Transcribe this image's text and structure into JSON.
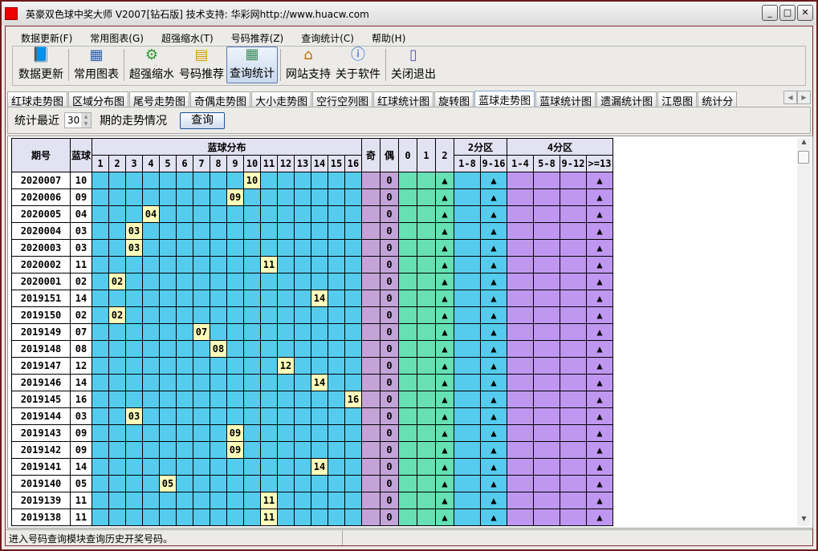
{
  "window": {
    "title": "英豪双色球中奖大师   V2007[钻石版]  技术支持: 华彩网http://www.huacw.com",
    "controls": [
      "minimize",
      "maximize",
      "close"
    ]
  },
  "menu": [
    "数据更新(F)",
    "常用图表(G)",
    "超强缩水(T)",
    "号码推荐(Z)",
    "查询统计(C)",
    "帮助(H)"
  ],
  "toolbar": [
    {
      "label": "数据更新",
      "icon": "book-icon"
    },
    {
      "label": "常用图表",
      "icon": "chart-grid-icon"
    },
    {
      "label": "超强缩水",
      "icon": "gear-book-icon"
    },
    {
      "label": "号码推荐",
      "icon": "coins-icon"
    },
    {
      "label": "查询统计",
      "icon": "stats-window-icon",
      "active": true
    },
    {
      "label": "网站支持",
      "icon": "home-icon"
    },
    {
      "label": "关于软件",
      "icon": "info-icon"
    },
    {
      "label": "关闭退出",
      "icon": "exit-door-icon"
    }
  ],
  "tabs": [
    "红球走势图",
    "区域分布图",
    "尾号走势图",
    "奇偶走势图",
    "大小走势图",
    "空行空列图",
    "红球统计图",
    "旋转图",
    "蓝球走势图",
    "蓝球统计图",
    "遗漏统计图",
    "江恩图",
    "统计分"
  ],
  "active_tab": "蓝球走势图",
  "filter": {
    "prefix": "统计最近",
    "value": "30",
    "suffix": "期的走势情况",
    "button": "查询"
  },
  "table": {
    "headers": {
      "period": "期号",
      "blue": "蓝球",
      "dist": "蓝球分布",
      "odd": "奇",
      "even": "偶",
      "mod0": "0",
      "mod1": "1",
      "mod2": "2",
      "zone2": "2分区",
      "zone4": "4分区",
      "dist_cols": [
        "1",
        "2",
        "3",
        "4",
        "5",
        "6",
        "7",
        "8",
        "9",
        "10",
        "11",
        "12",
        "13",
        "14",
        "15",
        "16"
      ],
      "zone2_cols": [
        "1-8",
        "9-16"
      ],
      "zone4_cols": [
        "1-4",
        "5-8",
        "9-12",
        ">=13"
      ]
    },
    "rows": [
      {
        "period": "2020007",
        "blue": "10"
      },
      {
        "period": "2020006",
        "blue": "09"
      },
      {
        "period": "2020005",
        "blue": "04"
      },
      {
        "period": "2020004",
        "blue": "03"
      },
      {
        "period": "2020003",
        "blue": "03"
      },
      {
        "period": "2020002",
        "blue": "11"
      },
      {
        "period": "2020001",
        "blue": "02"
      },
      {
        "period": "2019151",
        "blue": "14"
      },
      {
        "period": "2019150",
        "blue": "02"
      },
      {
        "period": "2019149",
        "blue": "07"
      },
      {
        "period": "2019148",
        "blue": "08"
      },
      {
        "period": "2019147",
        "blue": "12"
      },
      {
        "period": "2019146",
        "blue": "14"
      },
      {
        "period": "2019145",
        "blue": "16"
      },
      {
        "period": "2019144",
        "blue": "03"
      },
      {
        "period": "2019143",
        "blue": "09"
      },
      {
        "period": "2019142",
        "blue": "09"
      },
      {
        "period": "2019141",
        "blue": "14"
      },
      {
        "period": "2019140",
        "blue": "05"
      },
      {
        "period": "2019139",
        "blue": "11"
      },
      {
        "period": "2019138",
        "blue": "11"
      }
    ],
    "even_value": "0",
    "marker": "▲"
  },
  "status": "进入号码查询模块查询历史开奖号码。",
  "colors": {
    "dist": "#55ccee",
    "hit": "#ffffbb",
    "oddeven": "#c4a4d8",
    "mod": "#66e0b4",
    "zone4": "#c097f0",
    "header": "#e2e2f2"
  }
}
